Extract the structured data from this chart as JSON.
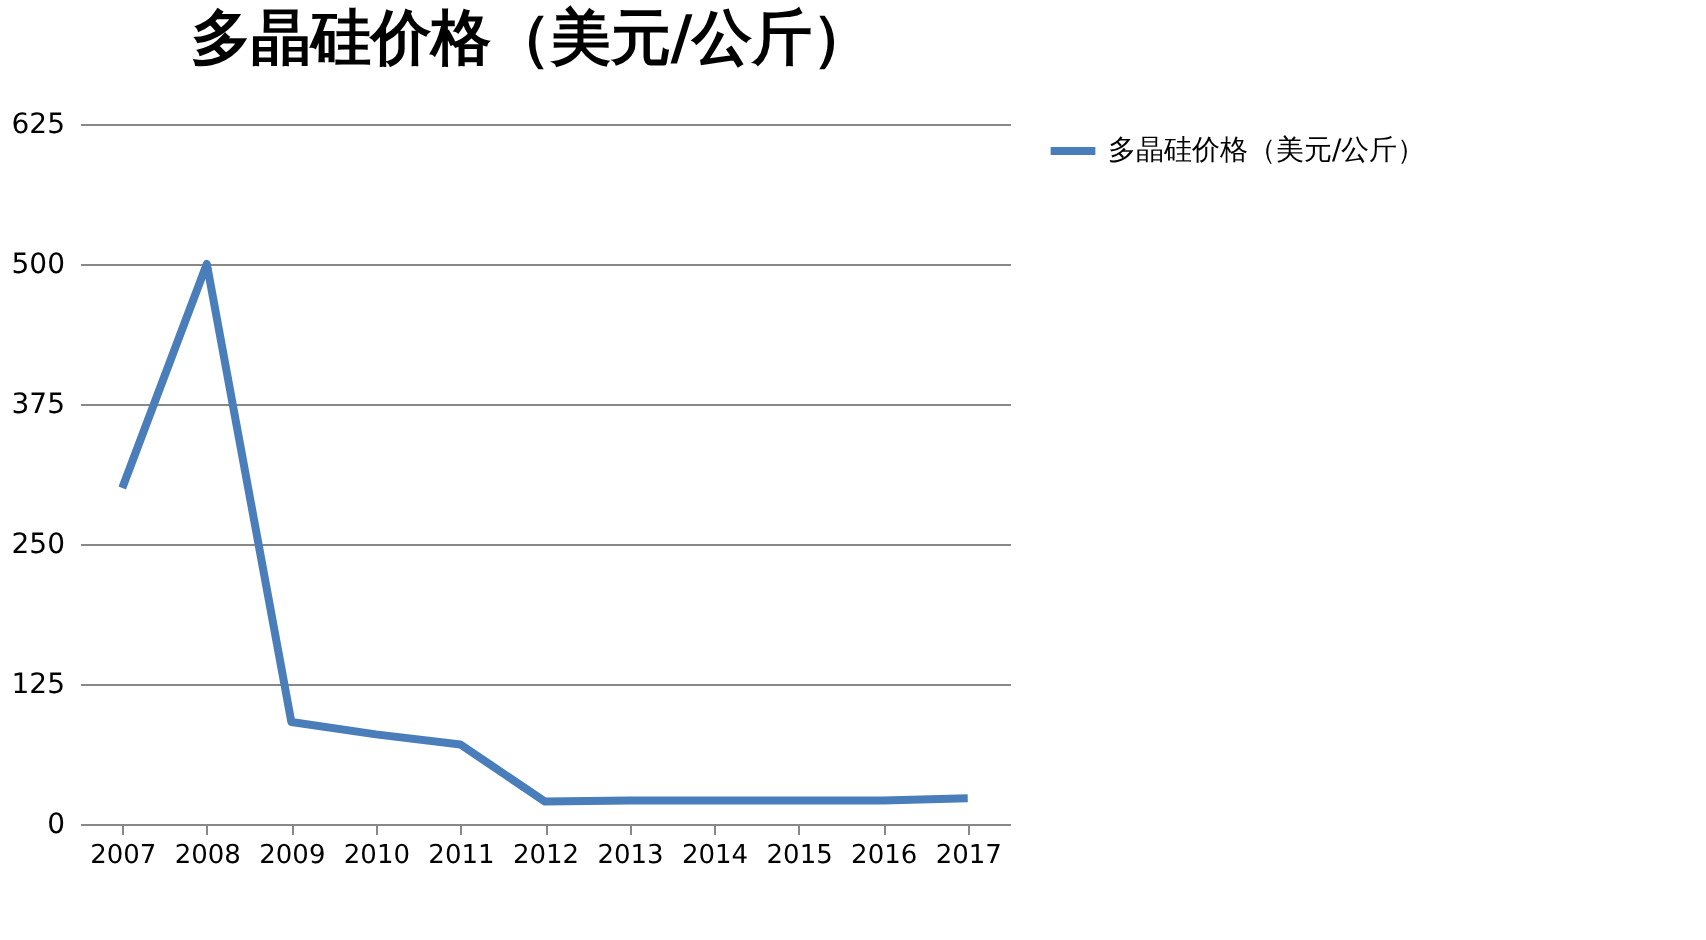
{
  "chart_data": {
    "type": "line",
    "title": "多晶硅价格（美元/公斤）",
    "categories": [
      "2007",
      "2008",
      "2009",
      "2010",
      "2011",
      "2012",
      "2013",
      "2014",
      "2015",
      "2016",
      "2017"
    ],
    "series": [
      {
        "name": "多晶硅价格（美元/公斤）",
        "color": "#4a7ebb",
        "values": [
          300,
          500,
          91,
          80,
          71,
          20,
          21,
          21,
          21,
          21,
          23
        ]
      }
    ],
    "ylim": [
      0,
      625
    ],
    "yticks": [
      0,
      125,
      250,
      375,
      500,
      625
    ],
    "grid": "y",
    "legend": "right",
    "marker": "none",
    "line_style": "solid"
  }
}
